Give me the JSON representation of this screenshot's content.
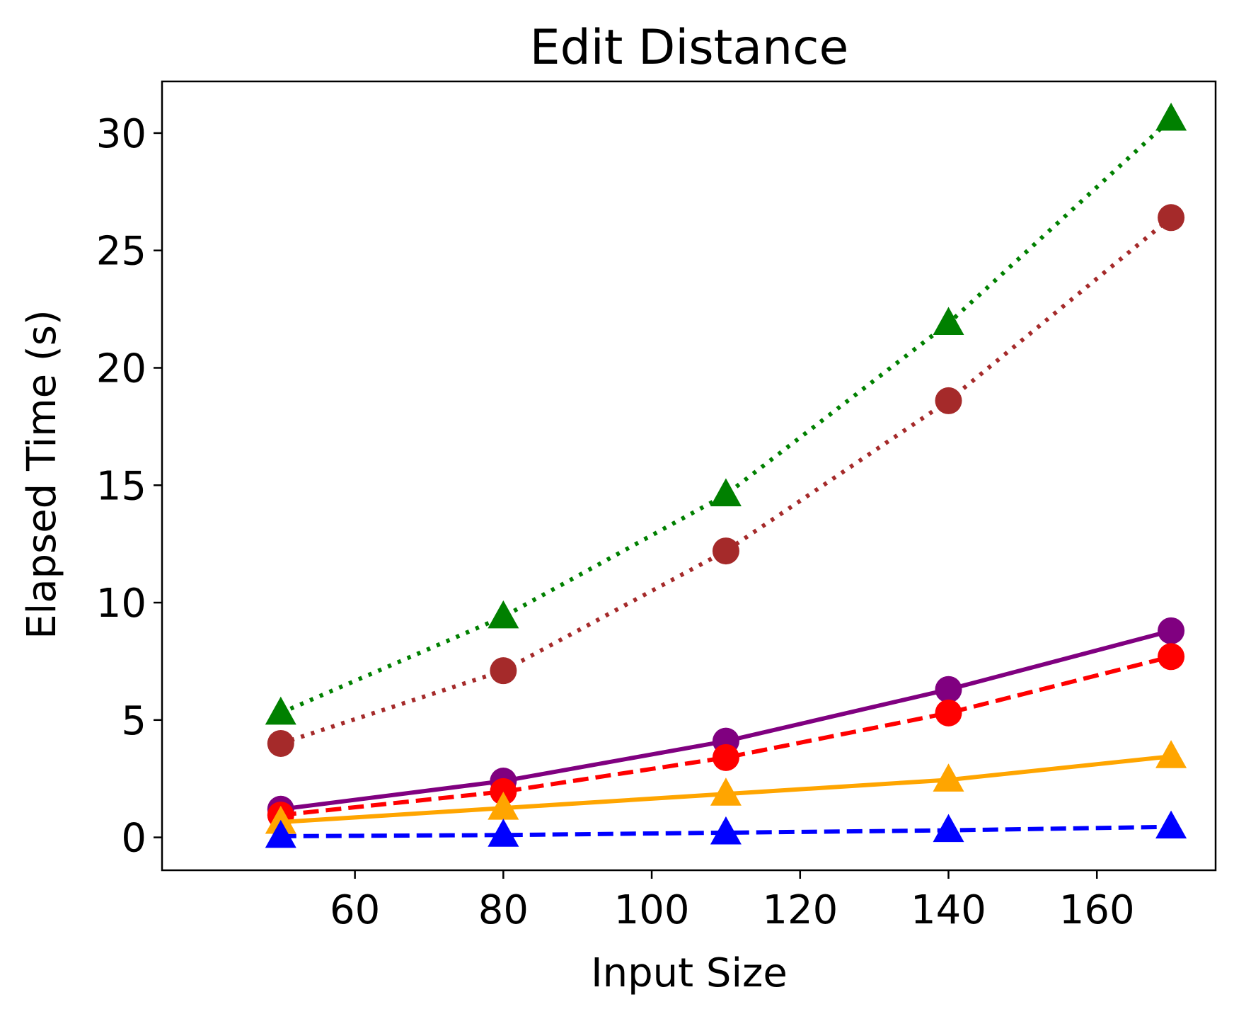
{
  "chart_data": {
    "type": "line",
    "title": "Edit Distance",
    "xlabel": "Input Size",
    "ylabel": "Elapsed Time (s)",
    "x": [
      50,
      80,
      110,
      140,
      170
    ],
    "xlim": [
      34,
      176
    ],
    "ylim": [
      -1.4,
      32.2
    ],
    "xticks": [
      60,
      80,
      100,
      120,
      140,
      160
    ],
    "yticks": [
      0,
      5,
      10,
      15,
      20,
      25,
      30
    ],
    "grid": false,
    "legend": "none",
    "series": [
      {
        "color": "#008000",
        "linestyle": "dotted",
        "marker": "triangle",
        "values": [
          5.3,
          9.4,
          14.6,
          21.9,
          30.6
        ]
      },
      {
        "color": "#a52a2a",
        "linestyle": "dotted",
        "marker": "circle",
        "values": [
          4.0,
          7.1,
          12.2,
          18.6,
          26.4
        ]
      },
      {
        "color": "#800080",
        "linestyle": "solid",
        "marker": "circle",
        "values": [
          1.2,
          2.4,
          4.1,
          6.3,
          8.8
        ]
      },
      {
        "color": "#ff0000",
        "linestyle": "dashed",
        "marker": "circle",
        "values": [
          0.95,
          1.95,
          3.4,
          5.3,
          7.7
        ]
      },
      {
        "color": "#ffa500",
        "linestyle": "solid",
        "marker": "triangle",
        "values": [
          0.65,
          1.25,
          1.85,
          2.45,
          3.45
        ]
      },
      {
        "color": "#0000ff",
        "linestyle": "dashed",
        "marker": "triangle",
        "values": [
          0.05,
          0.1,
          0.2,
          0.3,
          0.45
        ]
      }
    ]
  }
}
